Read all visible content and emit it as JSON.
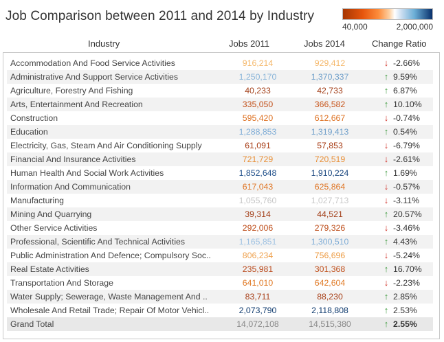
{
  "title": "Job Comparison between 2011 and 2014 by Industry",
  "legend": {
    "min_label": "40,000",
    "max_label": "2,000,000"
  },
  "headers": {
    "industry": "Industry",
    "jobs2011": "Jobs 2011",
    "jobs2014": "Jobs 2014",
    "change": "Change Ratio"
  },
  "colors": {
    "up": "#3d9a3d",
    "down": "#d0322a"
  },
  "rows": [
    {
      "industry": "Accommodation And Food Service Activities",
      "jobs2011": "916,214",
      "jobs2014": "929,412",
      "change": "-2.66%",
      "dir": "down",
      "c11": "#f5b86b",
      "c14": "#f5b86b"
    },
    {
      "industry": "Administrative And Support Service Activities",
      "jobs2011": "1,250,170",
      "jobs2014": "1,370,337",
      "change": "9.59%",
      "dir": "up",
      "c11": "#8ab5d9",
      "c14": "#6f9fca"
    },
    {
      "industry": "Agriculture, Forestry And Fishing",
      "jobs2011": "40,233",
      "jobs2014": "42,733",
      "change": "6.87%",
      "dir": "up",
      "c11": "#a3401a",
      "c14": "#a3401a"
    },
    {
      "industry": "Arts, Entertainment And Recreation",
      "jobs2011": "335,050",
      "jobs2014": "366,582",
      "change": "10.10%",
      "dir": "up",
      "c11": "#c24f18",
      "c14": "#c75318"
    },
    {
      "industry": "Construction",
      "jobs2011": "595,420",
      "jobs2014": "612,667",
      "change": "-0.74%",
      "dir": "down",
      "c11": "#dd6f1f",
      "c14": "#dd6f1f"
    },
    {
      "industry": "Education",
      "jobs2011": "1,288,853",
      "jobs2014": "1,319,413",
      "change": "0.54%",
      "dir": "up",
      "c11": "#7eacd6",
      "c14": "#6f9fca"
    },
    {
      "industry": "Electricity, Gas, Steam And Air Conditioning Supply",
      "jobs2011": "61,091",
      "jobs2014": "57,853",
      "change": "-6.79%",
      "dir": "down",
      "c11": "#a63a12",
      "c14": "#a63a12"
    },
    {
      "industry": "Financial And Insurance Activities",
      "jobs2011": "721,729",
      "jobs2014": "720,519",
      "change": "-2.61%",
      "dir": "down",
      "c11": "#e88e35",
      "c14": "#e88e35"
    },
    {
      "industry": "Human Health And Social Work Activities",
      "jobs2011": "1,852,648",
      "jobs2014": "1,910,224",
      "change": "1.69%",
      "dir": "up",
      "c11": "#1f4f8a",
      "c14": "#1a477f"
    },
    {
      "industry": "Information And Communication",
      "jobs2011": "617,043",
      "jobs2014": "625,864",
      "change": "-0.57%",
      "dir": "down",
      "c11": "#df7423",
      "c14": "#df7423"
    },
    {
      "industry": "Manufacturing",
      "jobs2011": "1,055,760",
      "jobs2014": "1,027,713",
      "change": "-3.11%",
      "dir": "down",
      "c11": "#c5c5c5",
      "c14": "#c8c8c8"
    },
    {
      "industry": "Mining And Quarrying",
      "jobs2011": "39,314",
      "jobs2014": "44,521",
      "change": "20.57%",
      "dir": "up",
      "c11": "#a3401a",
      "c14": "#a3401a"
    },
    {
      "industry": "Other Service Activities",
      "jobs2011": "292,006",
      "jobs2014": "279,326",
      "change": "-3.46%",
      "dir": "down",
      "c11": "#bd4b17",
      "c14": "#bd4b17"
    },
    {
      "industry": "Professional, Scientific And Technical Activities",
      "jobs2011": "1,165,851",
      "jobs2014": "1,300,510",
      "change": "4.43%",
      "dir": "up",
      "c11": "#9fc2e2",
      "c14": "#7eacd6"
    },
    {
      "industry": "Public Administration And Defence; Compulsory Soc..",
      "jobs2011": "806,234",
      "jobs2014": "756,696",
      "change": "-5.24%",
      "dir": "down",
      "c11": "#efa24f",
      "c14": "#ec993f"
    },
    {
      "industry": "Real Estate Activities",
      "jobs2011": "235,981",
      "jobs2014": "301,368",
      "change": "16.70%",
      "dir": "up",
      "c11": "#b9481a",
      "c14": "#bf4c17"
    },
    {
      "industry": "Transportation And Storage",
      "jobs2011": "641,010",
      "jobs2014": "642,604",
      "change": "-2.23%",
      "dir": "down",
      "c11": "#e07a26",
      "c14": "#e07a26"
    },
    {
      "industry": "Water Supply; Sewerage, Waste Management And ..",
      "jobs2011": "83,711",
      "jobs2014": "88,230",
      "change": "2.85%",
      "dir": "up",
      "c11": "#a8411a",
      "c14": "#a8411a"
    },
    {
      "industry": "Wholesale And Retail Trade; Repair Of Motor Vehicl..",
      "jobs2011": "2,073,790",
      "jobs2014": "2,118,808",
      "change": "2.53%",
      "dir": "up",
      "c11": "#0e3a6e",
      "c14": "#0e3a6e"
    }
  ],
  "total": {
    "label": "Grand Total",
    "jobs2011": "14,072,108",
    "jobs2014": "14,515,380",
    "change": "2.55%",
    "dir": "up"
  }
}
